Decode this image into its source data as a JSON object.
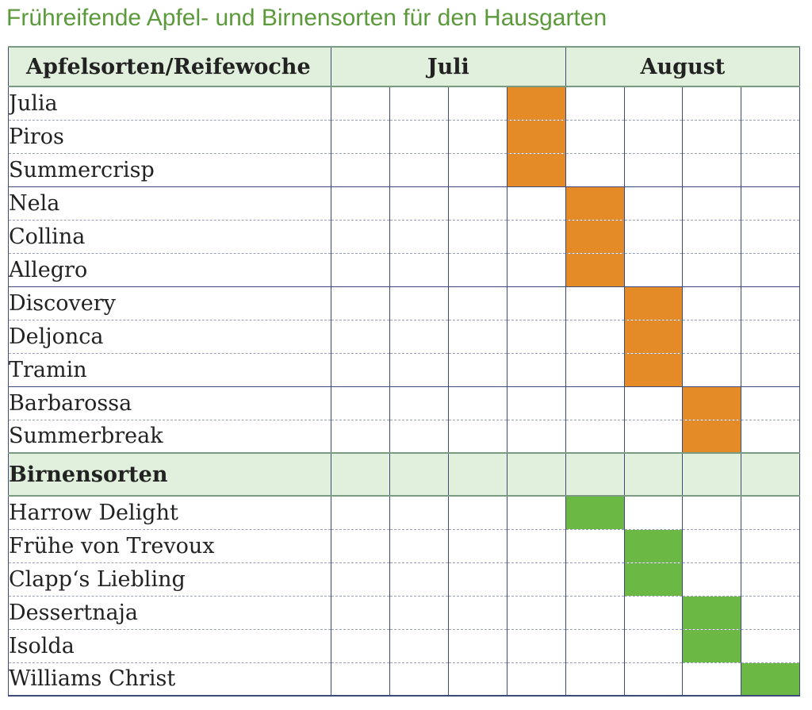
{
  "title": "Frühreifende Apfel- und Birnensorten für den Hausgarten",
  "header": {
    "first_col": "Apfelsorten/Reifewoche",
    "months": [
      "Juli",
      "August"
    ]
  },
  "colors": {
    "apple": "#e48a27",
    "pear": "#6bb845",
    "header_bg": "#e1f0dc",
    "title": "#5b9a3a"
  },
  "weeks_per_month": 4,
  "apples": [
    {
      "name": "Julia",
      "week": 4
    },
    {
      "name": "Piros",
      "week": 4
    },
    {
      "name": "Summercrisp",
      "week": 4
    },
    {
      "name": "Nela",
      "week": 5
    },
    {
      "name": "Collina",
      "week": 5
    },
    {
      "name": "Allegro",
      "week": 5
    },
    {
      "name": "Discovery",
      "week": 6
    },
    {
      "name": "Deljonca",
      "week": 6
    },
    {
      "name": "Tramin",
      "week": 6
    },
    {
      "name": "Barbarossa",
      "week": 7
    },
    {
      "name": "Summerbreak",
      "week": 7
    }
  ],
  "pear_section_label": "Birnensorten",
  "pears": [
    {
      "name": "Harrow Delight",
      "week": 5
    },
    {
      "name": "Frühe von Trevoux",
      "week": 6
    },
    {
      "name": "Clapp‘s Liebling",
      "week": 6
    },
    {
      "name": "Dessertnaja",
      "week": 7
    },
    {
      "name": "Isolda",
      "week": 7
    },
    {
      "name": "Williams Christ",
      "week": 8
    }
  ]
}
